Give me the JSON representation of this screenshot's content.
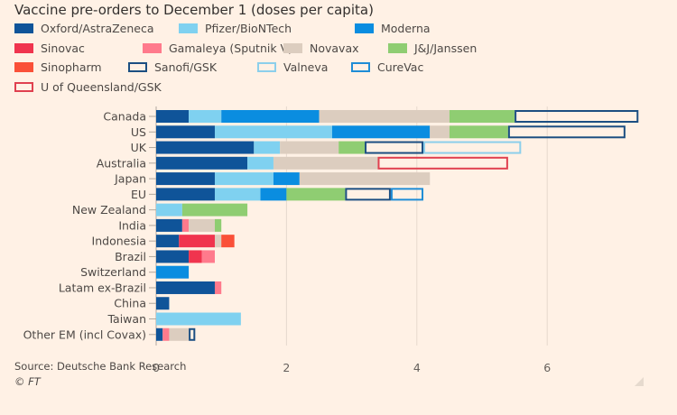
{
  "chart_data": {
    "type": "bar",
    "orientation": "horizontal",
    "stacked": true,
    "title": "Vaccine pre-orders to December 1 (doses per capita)",
    "xlabel": "",
    "ylabel": "",
    "xlim": [
      0,
      7.6
    ],
    "xticks": [
      0,
      2,
      4,
      6
    ],
    "grid": true,
    "legend_position": "top",
    "categories": [
      "Canada",
      "US",
      "UK",
      "Australia",
      "Japan",
      "EU",
      "New Zealand",
      "India",
      "Indonesia",
      "Brazil",
      "Switzerland",
      "Latam ex-Brazil",
      "China",
      "Taiwan",
      "Other EM (incl Covax)"
    ],
    "series": [
      {
        "name": "Oxford/AstraZeneca",
        "style": "filled",
        "color": "#0f5499",
        "values": [
          0.5,
          0.9,
          1.5,
          1.4,
          0.9,
          0.9,
          0,
          0.4,
          0.35,
          0.5,
          0,
          0.9,
          0.2,
          0,
          0.1
        ]
      },
      {
        "name": "Pfizer/BioNTech",
        "style": "filled",
        "color": "#7fd1f0",
        "values": [
          0.5,
          1.8,
          0.4,
          0.4,
          0.9,
          0.7,
          0.4,
          0,
          0,
          0,
          0,
          0,
          0,
          1.3,
          0
        ]
      },
      {
        "name": "Moderna",
        "style": "filled",
        "color": "#0a8de0",
        "values": [
          1.5,
          1.5,
          0,
          0,
          0.4,
          0.4,
          0,
          0,
          0,
          0,
          0.5,
          0,
          0,
          0,
          0
        ]
      },
      {
        "name": "Sinovac",
        "style": "filled",
        "color": "#f0344e",
        "values": [
          0,
          0,
          0,
          0,
          0,
          0,
          0,
          0,
          0.55,
          0.2,
          0,
          0,
          0,
          0,
          0
        ]
      },
      {
        "name": "Gamaleya (Sputnik V)",
        "style": "filled",
        "color": "#ff7a8c",
        "values": [
          0,
          0,
          0,
          0,
          0,
          0,
          0,
          0.1,
          0,
          0.2,
          0,
          0.1,
          0,
          0,
          0.1
        ]
      },
      {
        "name": "Novavax",
        "style": "filled",
        "color": "#dccdbf",
        "values": [
          2.0,
          0.3,
          0.9,
          1.6,
          2.0,
          0,
          0,
          0.4,
          0.1,
          0,
          0,
          0,
          0,
          0,
          0.3
        ]
      },
      {
        "name": "J&J/Janssen",
        "style": "filled",
        "color": "#8fcd72",
        "values": [
          1.0,
          0.9,
          0.4,
          0,
          0,
          0.9,
          1.0,
          0.1,
          0,
          0,
          0,
          0,
          0,
          0,
          0
        ]
      },
      {
        "name": "Sinopharm",
        "style": "filled",
        "color": "#fa5038",
        "values": [
          0,
          0,
          0,
          0,
          0,
          0,
          0,
          0,
          0.2,
          0,
          0,
          0,
          0,
          0,
          0
        ]
      },
      {
        "name": "Sanofi/GSK",
        "style": "outline",
        "color": "#1c4f82",
        "values": [
          1.9,
          1.8,
          0.9,
          0,
          0,
          0.7,
          0,
          0,
          0,
          0,
          0,
          0,
          0,
          0,
          0.1
        ]
      },
      {
        "name": "Valneva",
        "style": "outline",
        "color": "#8ccfeb",
        "values": [
          0,
          0,
          1.5,
          0,
          0,
          0,
          0,
          0,
          0,
          0,
          0,
          0,
          0,
          0,
          0
        ]
      },
      {
        "name": "CureVac",
        "style": "outline",
        "color": "#1f8dd6",
        "values": [
          0,
          0,
          0,
          0,
          0,
          0.5,
          0,
          0,
          0,
          0,
          0,
          0,
          0,
          0,
          0
        ]
      },
      {
        "name": "U of Queensland/GSK",
        "style": "outline",
        "color": "#e0404f",
        "values": [
          0,
          0,
          0,
          2.0,
          0,
          0,
          0,
          0,
          0,
          0,
          0,
          0,
          0,
          0,
          0
        ]
      }
    ],
    "legend_order": [
      [
        "Oxford/AstraZeneca",
        "Pfizer/BioNTech",
        "Moderna"
      ],
      [
        "Sinovac",
        "Gamaleya (Sputnik V)",
        "Novavax",
        "J&J/Janssen"
      ],
      [
        "Sinopharm",
        "Sanofi/GSK",
        "Valneva",
        "CureVac"
      ],
      [
        "U of Queensland/GSK"
      ]
    ]
  },
  "footer": {
    "source": "Source: Deutsche Bank Research",
    "copyright": "© FT"
  }
}
